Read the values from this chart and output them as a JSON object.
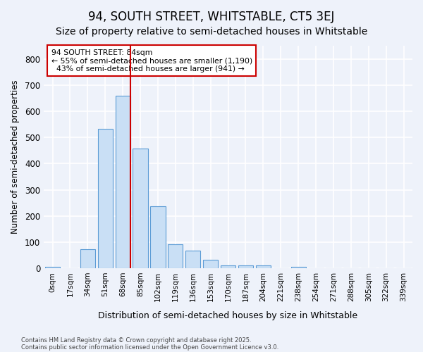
{
  "title": "94, SOUTH STREET, WHITSTABLE, CT5 3EJ",
  "subtitle": "Size of property relative to semi-detached houses in Whitstable",
  "xlabel": "Distribution of semi-detached houses by size in Whitstable",
  "ylabel": "Number of semi-detached properties",
  "bin_labels": [
    "0sqm",
    "17sqm",
    "34sqm",
    "51sqm",
    "68sqm",
    "85sqm",
    "102sqm",
    "119sqm",
    "136sqm",
    "153sqm",
    "170sqm",
    "187sqm",
    "204sqm",
    "221sqm",
    "238sqm",
    "254sqm",
    "271sqm",
    "288sqm",
    "305sqm",
    "322sqm",
    "339sqm"
  ],
  "values": [
    5,
    0,
    72,
    533,
    660,
    458,
    238,
    93,
    68,
    32,
    12,
    12,
    10,
    0,
    5,
    0,
    0,
    0,
    0,
    0,
    0
  ],
  "bar_color": "#c9dff5",
  "bar_edge_color": "#5b9bd5",
  "subject_line_color": "#cc0000",
  "annotation_text": "94 SOUTH STREET: 84sqm\n← 55% of semi-detached houses are smaller (1,190)\n  43% of semi-detached houses are larger (941) →",
  "annotation_box_edgecolor": "#cc0000",
  "ylim": [
    0,
    850
  ],
  "yticks": [
    0,
    100,
    200,
    300,
    400,
    500,
    600,
    700,
    800
  ],
  "footnote1": "Contains HM Land Registry data © Crown copyright and database right 2025.",
  "footnote2": "Contains public sector information licensed under the Open Government Licence v3.0.",
  "bg_color": "#eef2fa",
  "grid_color": "#ffffff",
  "title_fontsize": 12,
  "subtitle_fontsize": 10,
  "subject_bar_index": 4
}
